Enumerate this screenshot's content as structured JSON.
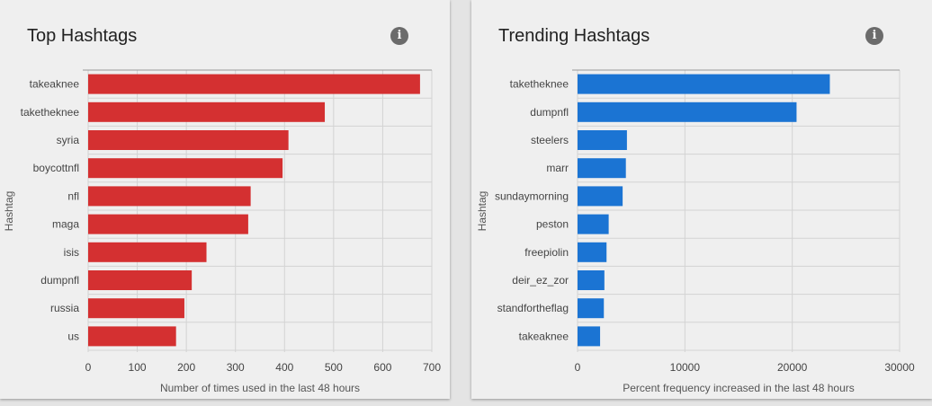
{
  "colors": {
    "top_bar": "#d43031",
    "trend_bar": "#1b74d3"
  },
  "chart_data": [
    {
      "type": "bar",
      "orientation": "horizontal",
      "title": "Top Hashtags",
      "info_icon": "info-icon",
      "categories": [
        "takeaknee",
        "taketheknee",
        "syria",
        "boycottnfl",
        "nfl",
        "maga",
        "isis",
        "dumpnfl",
        "russia",
        "us"
      ],
      "values": [
        676,
        482,
        408,
        396,
        331,
        326,
        241,
        211,
        196,
        179
      ],
      "xlabel": "Number of times used in the last 48 hours",
      "ylabel": "Hashtag",
      "xlim": [
        0,
        700
      ],
      "xticks": [
        0,
        100,
        200,
        300,
        400,
        500,
        600,
        700
      ],
      "grid": true
    },
    {
      "type": "bar",
      "orientation": "horizontal",
      "title": "Trending Hashtags",
      "info_icon": "info-icon",
      "categories": [
        "taketheknee",
        "dumpnfl",
        "steelers",
        "marr",
        "sundaymorning",
        "peston",
        "freepiolin",
        "deir_ez_zor",
        "standfortheflag",
        "takeaknee"
      ],
      "values": [
        23500,
        20400,
        4600,
        4500,
        4200,
        2900,
        2700,
        2500,
        2450,
        2100
      ],
      "xlabel": "Percent frequency increased in the last 48 hours",
      "ylabel": "Hashtag",
      "xlim": [
        0,
        30000
      ],
      "xticks": [
        0,
        10000,
        20000,
        30000
      ],
      "grid": true
    }
  ]
}
